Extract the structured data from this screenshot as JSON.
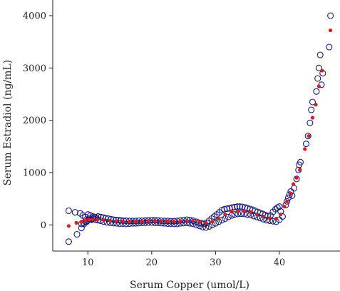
{
  "chart_data": {
    "type": "scatter",
    "xlabel": "Serum Copper (umol/L)",
    "ylabel": "Serum Estradiol (ng/mL)",
    "xlim": [
      4.5,
      49.5
    ],
    "ylim": [
      -500,
      4300
    ],
    "x_ticks": [
      10,
      20,
      30,
      40
    ],
    "y_ticks": [
      0,
      1000,
      2000,
      3000,
      4000
    ],
    "x_tick_labels": [
      "10",
      "20",
      "30",
      "40"
    ],
    "y_tick_labels": [
      "0",
      "1000",
      "2000",
      "3000",
      "4000"
    ],
    "grid": false,
    "legend": "none",
    "colors": {
      "observed": "#1a1a6e",
      "fitted": "#d42020",
      "axis": "#222222"
    },
    "series": [
      {
        "marker": "open-circle",
        "x": [
          7.0,
          7.0,
          8.0,
          8.3,
          8.8,
          9.0,
          9.2,
          9.4,
          9.6,
          9.8,
          10.0,
          10.2,
          10.4,
          10.6,
          10.8,
          11.0,
          11.3,
          11.6,
          12.0,
          12.4,
          12.8,
          13.2,
          13.6,
          14.0,
          14.4,
          14.8,
          15.2,
          15.6,
          16.0,
          16.5,
          17.0,
          17.5,
          18.0,
          18.5,
          19.0,
          19.5,
          20.0,
          20.5,
          21.0,
          21.5,
          22.0,
          22.5,
          23.0,
          23.5,
          24.0,
          24.5,
          25.0,
          25.5,
          26.0,
          26.5,
          27.0,
          27.4,
          27.8,
          28.2,
          28.6,
          29.0,
          29.4,
          29.8,
          30.2,
          30.6,
          31.0,
          31.4,
          31.8,
          32.2,
          32.6,
          33.0,
          33.4,
          33.8,
          34.2,
          34.6,
          35.0,
          35.4,
          35.8,
          36.2,
          36.6,
          37.0,
          37.4,
          37.8,
          38.2,
          38.6,
          39.0,
          39.4,
          39.7,
          40.0,
          40.2,
          40.5,
          41.0,
          41.2,
          41.4,
          41.6,
          41.8,
          42.0,
          42.3,
          42.7,
          43.0,
          43.1,
          43.3,
          44.2,
          44.5,
          44.8,
          45.0,
          45.2,
          45.8,
          46.0,
          46.2,
          46.4,
          46.6,
          46.8,
          47.8,
          48.0,
          9.0,
          9.3,
          9.6,
          9.9,
          10.2,
          10.5,
          10.8,
          11.2,
          11.6,
          12.0,
          12.5,
          13.0,
          13.5,
          14.0,
          14.5,
          15.0,
          15.5,
          16.0,
          16.5,
          17.0,
          17.5,
          18.0,
          18.5,
          19.0,
          19.5,
          20.0,
          20.5,
          21.0,
          21.5,
          22.0,
          22.5,
          23.0,
          23.5,
          24.0,
          24.5,
          25.0,
          25.5,
          26.0,
          26.5,
          27.0,
          27.5,
          28.0,
          28.5,
          29.0,
          29.5,
          30.0,
          30.5,
          31.0,
          31.5,
          32.0,
          32.5,
          33.0,
          33.5,
          34.0,
          34.5,
          35.0,
          35.5,
          36.0,
          36.5,
          37.0,
          37.5,
          38.0,
          38.5,
          39.0,
          39.5,
          40.0
        ],
        "y": [
          270,
          -320,
          240,
          -180,
          220,
          -60,
          180,
          20,
          150,
          60,
          200,
          120,
          180,
          100,
          160,
          150,
          140,
          160,
          150,
          140,
          130,
          120,
          110,
          100,
          95,
          90,
          85,
          80,
          80,
          75,
          75,
          75,
          80,
          80,
          85,
          85,
          90,
          90,
          85,
          80,
          75,
          75,
          70,
          70,
          75,
          85,
          90,
          100,
          95,
          80,
          60,
          40,
          30,
          20,
          40,
          80,
          120,
          160,
          200,
          240,
          280,
          300,
          310,
          320,
          330,
          340,
          350,
          350,
          345,
          335,
          320,
          305,
          290,
          270,
          250,
          230,
          210,
          190,
          170,
          180,
          250,
          300,
          330,
          350,
          260,
          160,
          380,
          450,
          520,
          580,
          640,
          560,
          700,
          880,
          1050,
          1150,
          1200,
          1550,
          1700,
          1950,
          2200,
          2350,
          2550,
          2800,
          3000,
          3250,
          2680,
          2900,
          3400,
          4000,
          20,
          40,
          60,
          80,
          100,
          110,
          120,
          100,
          90,
          80,
          60,
          50,
          40,
          35,
          30,
          25,
          25,
          20,
          25,
          30,
          30,
          35,
          40,
          40,
          45,
          45,
          40,
          40,
          35,
          30,
          25,
          25,
          20,
          20,
          30,
          35,
          40,
          30,
          20,
          0,
          -20,
          -40,
          -50,
          -30,
          0,
          30,
          60,
          90,
          120,
          150,
          180,
          200,
          210,
          215,
          210,
          200,
          190,
          170,
          150,
          130,
          110,
          90,
          80,
          70,
          60,
          100
        ]
      },
      {
        "marker": "filled-dot",
        "x": [
          7.0,
          8.2,
          9.0,
          9.6,
          10.2,
          10.8,
          11.5,
          12.5,
          13.5,
          14.5,
          15.5,
          16.5,
          17.5,
          18.5,
          19.5,
          20.5,
          21.5,
          22.5,
          23.5,
          24.5,
          25.5,
          26.5,
          27.5,
          28.5,
          29.5,
          30.5,
          31.5,
          32.5,
          33.5,
          34.5,
          35.5,
          36.5,
          37.5,
          38.5,
          39.5,
          40.2,
          40.8,
          41.2,
          41.8,
          42.2,
          42.7,
          43.2,
          44.0,
          44.6,
          45.2,
          45.7,
          46.2,
          46.7,
          48.0
        ],
        "y": [
          -20,
          40,
          60,
          90,
          100,
          110,
          100,
          90,
          80,
          75,
          70,
          65,
          65,
          68,
          75,
          78,
          75,
          70,
          65,
          68,
          80,
          85,
          70,
          40,
          60,
          120,
          200,
          260,
          270,
          270,
          245,
          200,
          160,
          130,
          120,
          200,
          350,
          450,
          600,
          780,
          900,
          1050,
          1450,
          1700,
          2050,
          2300,
          2650,
          2950,
          3720
        ]
      }
    ]
  }
}
